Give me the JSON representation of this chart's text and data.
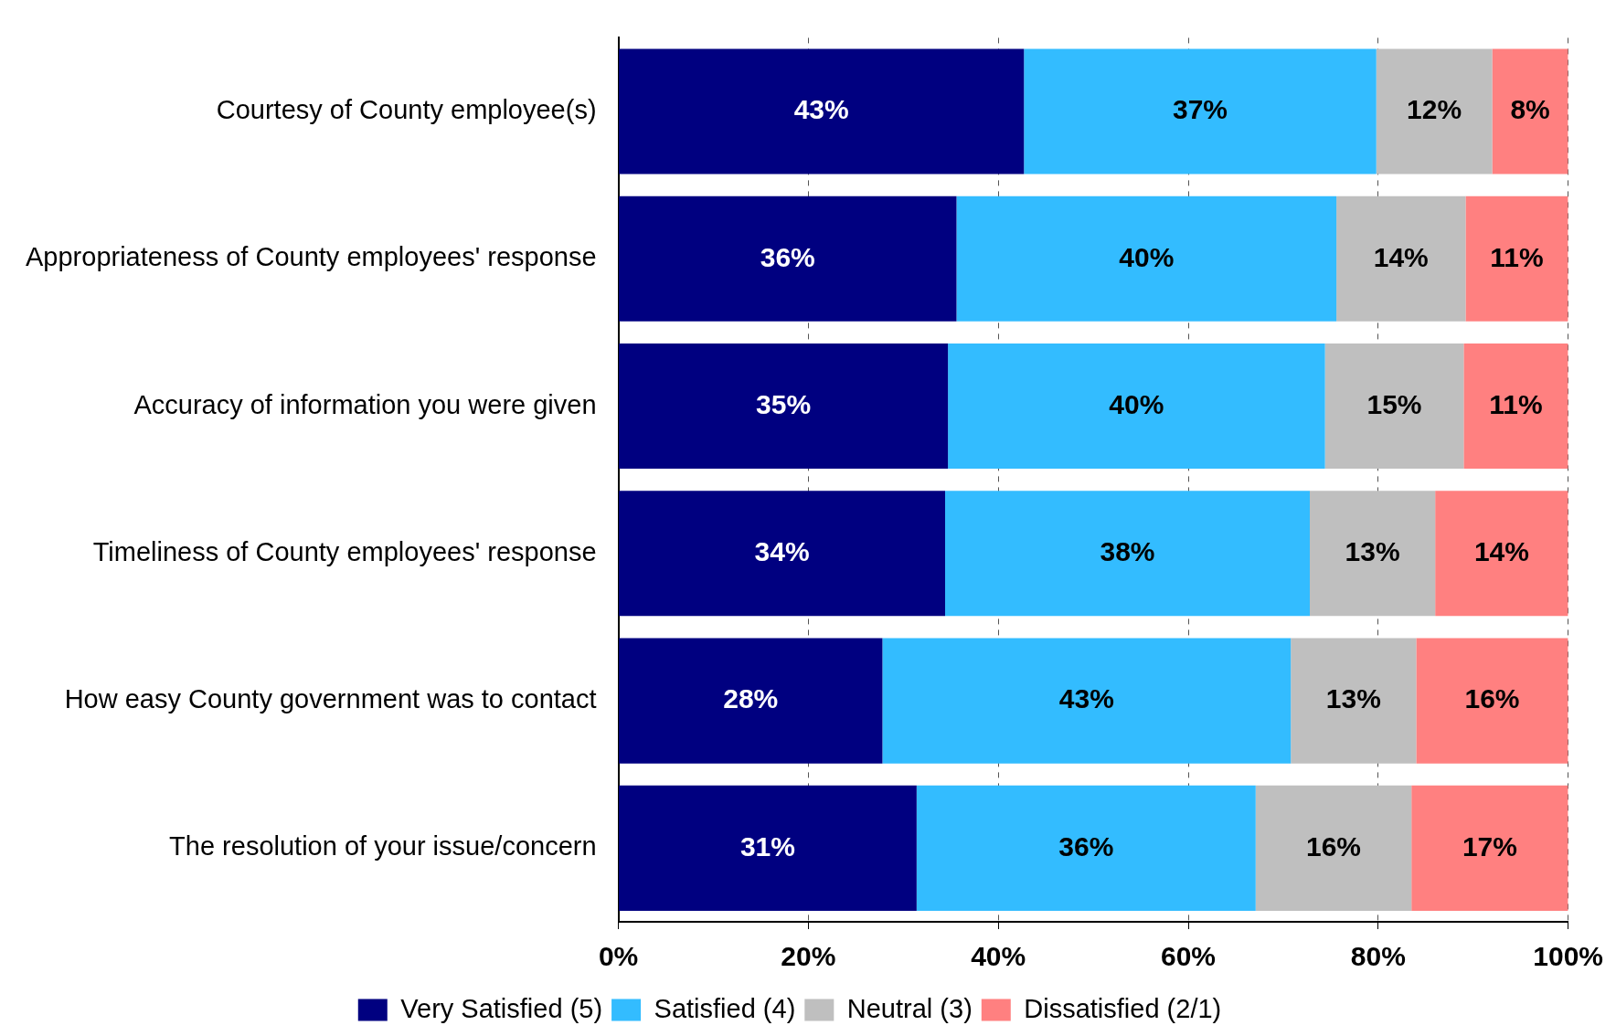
{
  "chart_data": {
    "type": "bar",
    "orientation": "horizontal",
    "stacked": true,
    "categories": [
      "Courtesy of County employee(s)",
      "Appropriateness of County employees' response",
      "Accuracy of information you were given",
      "Timeliness of County employees' response",
      "How easy County government was to contact",
      "The resolution of your issue/concern"
    ],
    "series": [
      {
        "name": "Very Satisfied (5)",
        "color": "#000080",
        "values": [
          42.7,
          35.6,
          34.7,
          34.4,
          27.8,
          31.4
        ],
        "value_labels": [
          "43%",
          "36%",
          "35%",
          "34%",
          "28%",
          "31%"
        ]
      },
      {
        "name": "Satisfied (4)",
        "color": "#33bcff",
        "values": [
          37.1,
          40.0,
          39.7,
          38.4,
          43.0,
          35.7
        ],
        "value_labels": [
          "37%",
          "40%",
          "40%",
          "38%",
          "43%",
          "36%"
        ]
      },
      {
        "name": "Neutral (3)",
        "color": "#bfbfbf",
        "values": [
          12.2,
          13.6,
          14.6,
          13.2,
          13.2,
          16.4
        ],
        "value_labels": [
          "12%",
          "14%",
          "15%",
          "13%",
          "13%",
          "16%"
        ]
      },
      {
        "name": "Dissatisfied (2/1)",
        "color": "#ff8080",
        "values": [
          8.0,
          10.8,
          11.0,
          14.0,
          16.0,
          16.5
        ],
        "value_labels": [
          "8%",
          "11%",
          "11%",
          "14%",
          "16%",
          "17%"
        ]
      }
    ],
    "xlim": [
      0,
      100
    ],
    "xticks": [
      {
        "value": 0,
        "label": "0%"
      },
      {
        "value": 20,
        "label": "20%"
      },
      {
        "value": 40,
        "label": "40%"
      },
      {
        "value": 60,
        "label": "60%"
      },
      {
        "value": 80,
        "label": "80%"
      },
      {
        "value": 100,
        "label": "100%"
      }
    ],
    "grid": "x",
    "legend": "bottom"
  }
}
